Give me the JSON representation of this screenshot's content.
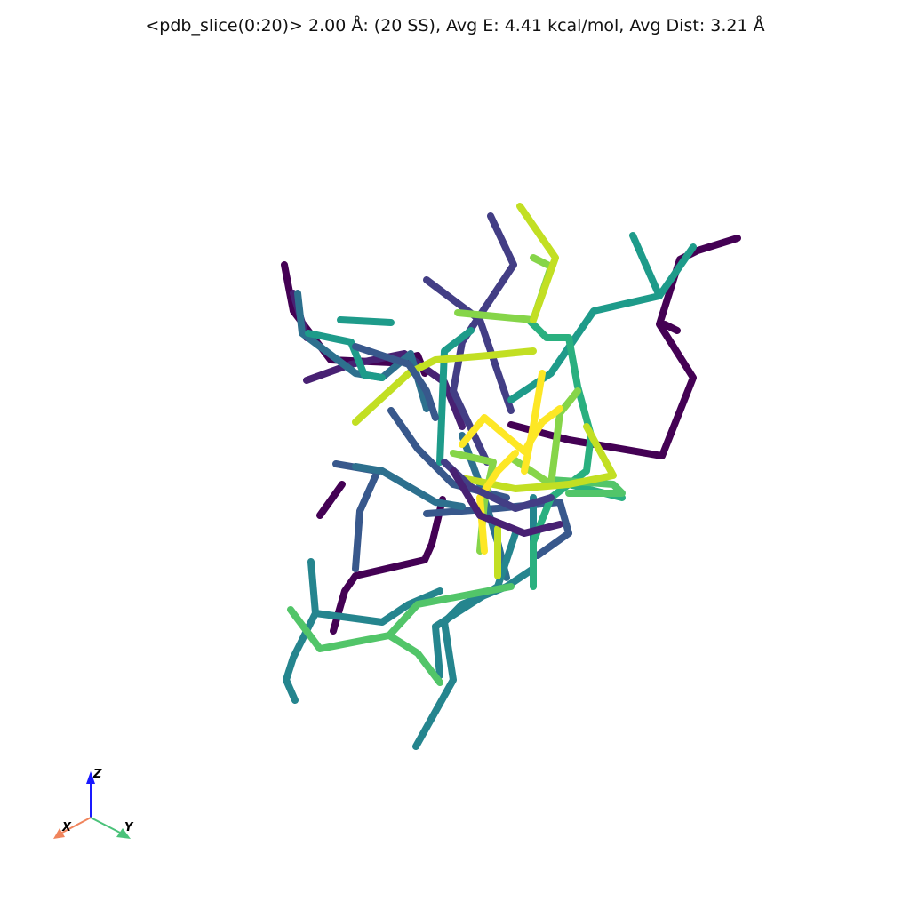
{
  "title": "<pdb_slice(0:20)> 2.00 Å: (20 SS), Avg E: 4.41 kcal/mol, Avg Dist: 3.21 Å",
  "axes": {
    "x": {
      "label": "X",
      "color": "#f0845c"
    },
    "y": {
      "label": "Y",
      "color": "#4bc27a"
    },
    "z": {
      "label": "Z",
      "color": "#1a1aff"
    }
  },
  "colormap": "viridis",
  "structure_count": 20,
  "colors": {
    "background": "#ffffff",
    "palette": [
      "#440154",
      "#482173",
      "#433e85",
      "#38588c",
      "#2d708e",
      "#25858e",
      "#1e9b8a",
      "#2ab07f",
      "#52c569",
      "#86d549",
      "#c2df23",
      "#fde725"
    ]
  }
}
